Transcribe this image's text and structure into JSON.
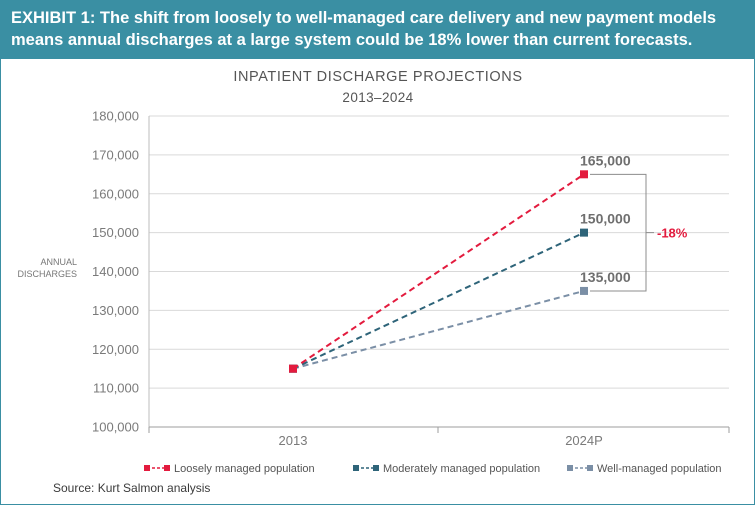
{
  "header": {
    "text": "EXHIBIT 1: The shift from loosely to well-managed care delivery and new payment models means annual discharges at a large system could be 18% lower than current forecasts."
  },
  "source": "Source: Kurt Salmon analysis",
  "colors": {
    "header_bg": "#3a8fa3",
    "loosely": "#e31b3e",
    "moderately": "#2e6479",
    "well": "#7b8fa6",
    "annotation": "#e31b3e"
  },
  "chart_data": {
    "type": "line",
    "title": "INPATIENT DISCHARGE PROJECTIONS",
    "subtitle": "2013–2024",
    "ylabel": "ANNUAL DISCHARGES",
    "xlabel": "",
    "categories": [
      "2013",
      "2024P"
    ],
    "ylim": [
      100000,
      180000
    ],
    "yticks": [
      100000,
      110000,
      120000,
      130000,
      140000,
      150000,
      160000,
      170000,
      180000
    ],
    "ytick_labels": [
      "100,000",
      "110,000",
      "120,000",
      "130,000",
      "140,000",
      "150,000",
      "160,000",
      "170,000",
      "180,000"
    ],
    "grid": true,
    "legend_position": "bottom",
    "series": [
      {
        "name": "Loosely managed population",
        "values": [
          115000,
          165000
        ],
        "end_label": "165,000",
        "color": "#e31b3e",
        "style": "dashed"
      },
      {
        "name": "Moderately managed population",
        "values": [
          115000,
          150000
        ],
        "end_label": "150,000",
        "color": "#2e6479",
        "style": "dashed"
      },
      {
        "name": "Well-managed population",
        "values": [
          115000,
          135000
        ],
        "end_label": "135,000",
        "color": "#7b8fa6",
        "style": "dashed"
      }
    ],
    "annotation": {
      "text": "-18%",
      "from": 165000,
      "to": 135000
    }
  }
}
